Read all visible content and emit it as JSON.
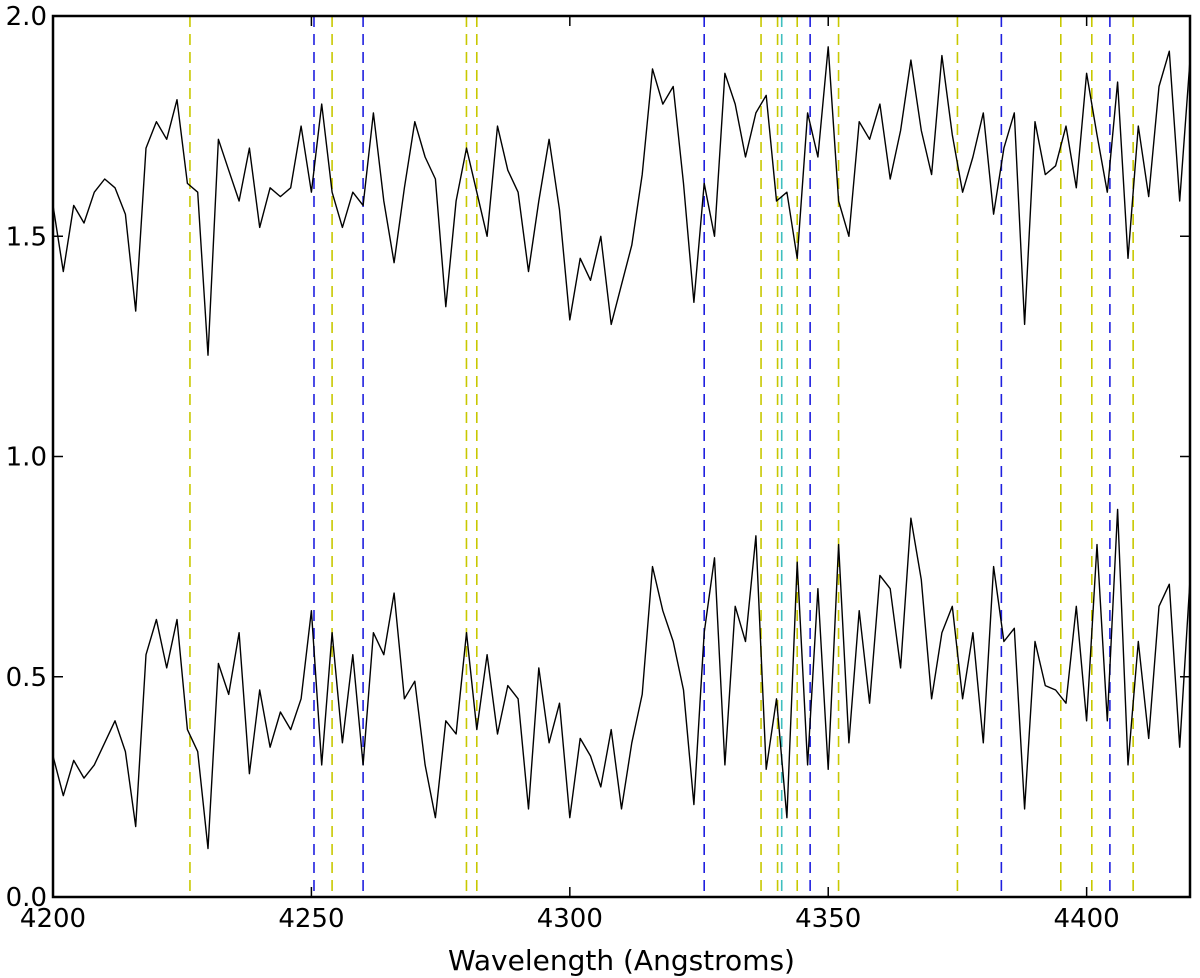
{
  "chart_data": {
    "type": "line",
    "xlabel": "Wavelength (Angstroms)",
    "ylabel": "",
    "xlim": [
      4200,
      4420
    ],
    "ylim": [
      0.0,
      2.0
    ],
    "x_ticks": [
      4200,
      4250,
      4300,
      4350,
      4400
    ],
    "x_tick_labels": [
      "4200",
      "4250",
      "4300",
      "4350",
      "4400"
    ],
    "y_ticks": [
      0.0,
      0.5,
      1.0,
      1.5,
      2.0
    ],
    "y_tick_labels": [
      "0.0",
      "0.5",
      "1.0",
      "1.5",
      "2.0"
    ],
    "grid": false,
    "spectrum_color": "#000000",
    "series": [
      {
        "x": [
          4200,
          4202,
          4204,
          4206,
          4208,
          4210,
          4212,
          4214,
          4216,
          4218,
          4220,
          4222,
          4224,
          4226,
          4228,
          4230,
          4232,
          4234,
          4236,
          4238,
          4240,
          4242,
          4244,
          4246,
          4248,
          4250,
          4252,
          4254,
          4256,
          4258,
          4260,
          4262,
          4264,
          4266,
          4268,
          4270,
          4272,
          4274,
          4276,
          4278,
          4280,
          4282,
          4284,
          4286,
          4288,
          4290,
          4292,
          4294,
          4296,
          4298,
          4300,
          4302,
          4304,
          4306,
          4308,
          4310,
          4312,
          4314,
          4316,
          4318,
          4320,
          4322,
          4324,
          4326,
          4328,
          4330,
          4332,
          4334,
          4336,
          4338,
          4340,
          4342,
          4344,
          4346,
          4348,
          4350,
          4352,
          4354,
          4356,
          4358,
          4360,
          4362,
          4364,
          4366,
          4368,
          4370,
          4372,
          4374,
          4376,
          4378,
          4380,
          4382,
          4384,
          4386,
          4388,
          4390,
          4392,
          4394,
          4396,
          4398,
          4400,
          4402,
          4404,
          4406,
          4408,
          4410,
          4412,
          4414,
          4416,
          4418,
          4420
        ],
        "values": [
          1.57,
          1.42,
          1.57,
          1.53,
          1.6,
          1.63,
          1.61,
          1.55,
          1.33,
          1.7,
          1.76,
          1.72,
          1.81,
          1.62,
          1.6,
          1.23,
          1.72,
          1.65,
          1.58,
          1.7,
          1.52,
          1.61,
          1.59,
          1.61,
          1.75,
          1.6,
          1.8,
          1.6,
          1.52,
          1.6,
          1.57,
          1.78,
          1.58,
          1.44,
          1.61,
          1.76,
          1.68,
          1.63,
          1.34,
          1.58,
          1.7,
          1.6,
          1.5,
          1.75,
          1.65,
          1.6,
          1.42,
          1.58,
          1.72,
          1.56,
          1.31,
          1.45,
          1.4,
          1.5,
          1.3,
          1.39,
          1.48,
          1.64,
          1.88,
          1.8,
          1.84,
          1.62,
          1.35,
          1.62,
          1.5,
          1.87,
          1.8,
          1.68,
          1.78,
          1.82,
          1.58,
          1.6,
          1.45,
          1.78,
          1.68,
          1.93,
          1.58,
          1.5,
          1.76,
          1.72,
          1.8,
          1.63,
          1.74,
          1.9,
          1.74,
          1.64,
          1.91,
          1.73,
          1.6,
          1.68,
          1.78,
          1.55,
          1.7,
          1.78,
          1.3,
          1.76,
          1.64,
          1.66,
          1.75,
          1.61,
          1.87,
          1.73,
          1.6,
          1.85,
          1.45,
          1.75,
          1.59,
          1.84,
          1.92,
          1.58,
          1.9
        ]
      },
      {
        "x": [
          4200,
          4202,
          4204,
          4206,
          4208,
          4210,
          4212,
          4214,
          4216,
          4218,
          4220,
          4222,
          4224,
          4226,
          4228,
          4230,
          4232,
          4234,
          4236,
          4238,
          4240,
          4242,
          4244,
          4246,
          4248,
          4250,
          4252,
          4254,
          4256,
          4258,
          4260,
          4262,
          4264,
          4266,
          4268,
          4270,
          4272,
          4274,
          4276,
          4278,
          4280,
          4282,
          4284,
          4286,
          4288,
          4290,
          4292,
          4294,
          4296,
          4298,
          4300,
          4302,
          4304,
          4306,
          4308,
          4310,
          4312,
          4314,
          4316,
          4318,
          4320,
          4322,
          4324,
          4326,
          4328,
          4330,
          4332,
          4334,
          4336,
          4338,
          4340,
          4342,
          4344,
          4346,
          4348,
          4350,
          4352,
          4354,
          4356,
          4358,
          4360,
          4362,
          4364,
          4366,
          4368,
          4370,
          4372,
          4374,
          4376,
          4378,
          4380,
          4382,
          4384,
          4386,
          4388,
          4390,
          4392,
          4394,
          4396,
          4398,
          4400,
          4402,
          4404,
          4406,
          4408,
          4410,
          4412,
          4414,
          4416,
          4418,
          4420
        ],
        "values": [
          0.32,
          0.23,
          0.31,
          0.27,
          0.3,
          0.35,
          0.4,
          0.33,
          0.16,
          0.55,
          0.63,
          0.52,
          0.63,
          0.38,
          0.33,
          0.11,
          0.53,
          0.46,
          0.6,
          0.28,
          0.47,
          0.34,
          0.42,
          0.38,
          0.45,
          0.65,
          0.3,
          0.6,
          0.35,
          0.55,
          0.3,
          0.6,
          0.55,
          0.69,
          0.45,
          0.49,
          0.3,
          0.18,
          0.4,
          0.37,
          0.6,
          0.38,
          0.55,
          0.37,
          0.48,
          0.45,
          0.2,
          0.52,
          0.35,
          0.44,
          0.18,
          0.36,
          0.32,
          0.25,
          0.38,
          0.2,
          0.35,
          0.46,
          0.75,
          0.65,
          0.58,
          0.47,
          0.21,
          0.6,
          0.77,
          0.3,
          0.66,
          0.58,
          0.82,
          0.29,
          0.45,
          0.18,
          0.76,
          0.3,
          0.7,
          0.29,
          0.8,
          0.35,
          0.65,
          0.44,
          0.73,
          0.7,
          0.52,
          0.86,
          0.72,
          0.45,
          0.6,
          0.66,
          0.45,
          0.6,
          0.35,
          0.75,
          0.58,
          0.61,
          0.2,
          0.58,
          0.48,
          0.47,
          0.44,
          0.66,
          0.4,
          0.8,
          0.4,
          0.88,
          0.3,
          0.58,
          0.36,
          0.66,
          0.71,
          0.34,
          0.72
        ]
      }
    ],
    "reference_lines": {
      "blue": {
        "color": "#1f1fdf",
        "x": [
          4250.5,
          4260,
          4326,
          4346.5,
          4383.5,
          4404.5
        ]
      },
      "yellow": {
        "color": "#c8c800",
        "x": [
          4226.5,
          4254,
          4280,
          4282,
          4337,
          4340.2,
          4344,
          4352,
          4375,
          4395,
          4401,
          4409
        ]
      },
      "cyan": {
        "color": "#3fbfbf",
        "x": [
          4341
        ]
      }
    }
  }
}
